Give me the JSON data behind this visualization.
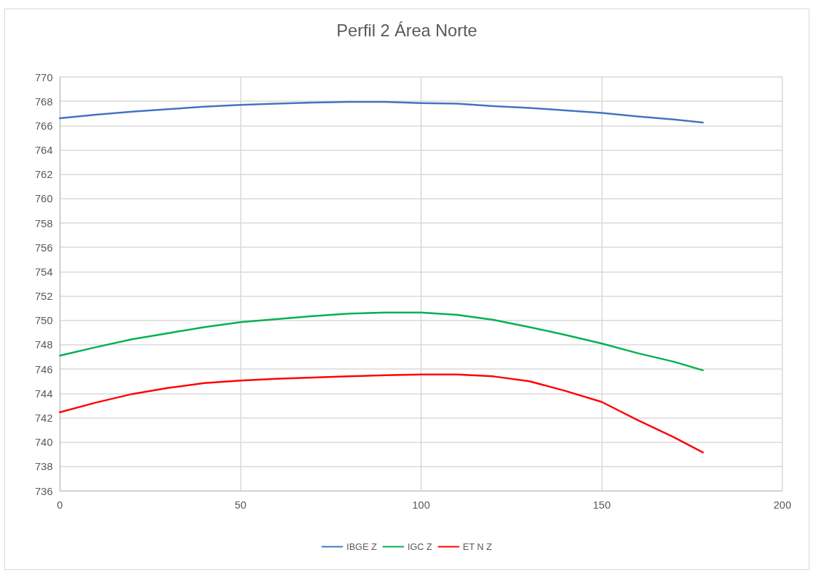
{
  "chart_data": {
    "type": "line",
    "title": "Perfil 2 Área Norte",
    "x": [
      0,
      10,
      20,
      30,
      40,
      50,
      60,
      70,
      80,
      90,
      100,
      110,
      120,
      130,
      140,
      150,
      160,
      170,
      178
    ],
    "series": [
      {
        "name": "IBGE Z",
        "color": "#4472c4",
        "values": [
          766.6,
          766.9,
          767.15,
          767.35,
          767.55,
          767.7,
          767.8,
          767.9,
          767.95,
          767.95,
          767.85,
          767.8,
          767.6,
          767.45,
          767.25,
          767.05,
          766.75,
          766.5,
          766.25
        ]
      },
      {
        "name": "IGC Z",
        "color": "#00b050",
        "values": [
          747.1,
          747.8,
          748.45,
          748.95,
          749.45,
          749.85,
          750.1,
          750.35,
          750.55,
          750.65,
          750.65,
          750.45,
          750.05,
          749.45,
          748.8,
          748.1,
          747.3,
          746.6,
          745.9
        ]
      },
      {
        "name": "ET N Z",
        "color": "#ff0000",
        "values": [
          742.45,
          743.25,
          743.95,
          744.45,
          744.85,
          745.05,
          745.2,
          745.3,
          745.4,
          745.5,
          745.55,
          745.55,
          745.4,
          745.0,
          744.2,
          743.3,
          741.8,
          740.4,
          739.15
        ]
      }
    ],
    "xlim": [
      0,
      200
    ],
    "xticks": [
      0,
      50,
      100,
      150,
      200
    ],
    "ylim": [
      736,
      770
    ],
    "yticks": [
      736,
      738,
      740,
      742,
      744,
      746,
      748,
      750,
      752,
      754,
      756,
      758,
      760,
      762,
      764,
      766,
      768,
      770
    ],
    "grid": true,
    "legend": "bottom",
    "marker": "none",
    "line_style": "solid"
  }
}
